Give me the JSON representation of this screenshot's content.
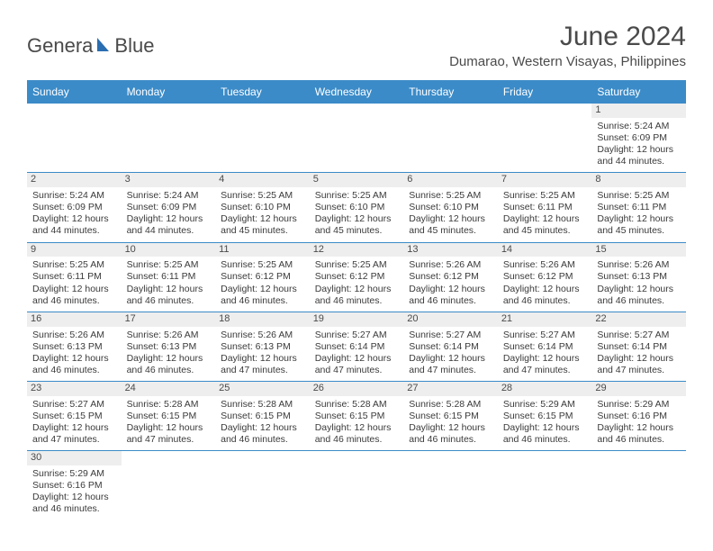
{
  "logo": {
    "text1": "Genera",
    "text2": "Blue",
    "shape_color": "#2a6db0"
  },
  "title": {
    "month": "June 2024",
    "location": "Dumarao, Western Visayas, Philippines"
  },
  "header_bg": "#3b8bc8",
  "days": [
    "Sunday",
    "Monday",
    "Tuesday",
    "Wednesday",
    "Thursday",
    "Friday",
    "Saturday"
  ],
  "cells": [
    {
      "n": "",
      "e": true
    },
    {
      "n": "",
      "e": true
    },
    {
      "n": "",
      "e": true
    },
    {
      "n": "",
      "e": true
    },
    {
      "n": "",
      "e": true
    },
    {
      "n": "",
      "e": true
    },
    {
      "n": "1",
      "sr": "5:24 AM",
      "ss": "6:09 PM",
      "dl": "12 hours and 44 minutes."
    },
    {
      "n": "2",
      "sr": "5:24 AM",
      "ss": "6:09 PM",
      "dl": "12 hours and 44 minutes."
    },
    {
      "n": "3",
      "sr": "5:24 AM",
      "ss": "6:09 PM",
      "dl": "12 hours and 44 minutes."
    },
    {
      "n": "4",
      "sr": "5:25 AM",
      "ss": "6:10 PM",
      "dl": "12 hours and 45 minutes."
    },
    {
      "n": "5",
      "sr": "5:25 AM",
      "ss": "6:10 PM",
      "dl": "12 hours and 45 minutes."
    },
    {
      "n": "6",
      "sr": "5:25 AM",
      "ss": "6:10 PM",
      "dl": "12 hours and 45 minutes."
    },
    {
      "n": "7",
      "sr": "5:25 AM",
      "ss": "6:11 PM",
      "dl": "12 hours and 45 minutes."
    },
    {
      "n": "8",
      "sr": "5:25 AM",
      "ss": "6:11 PM",
      "dl": "12 hours and 45 minutes."
    },
    {
      "n": "9",
      "sr": "5:25 AM",
      "ss": "6:11 PM",
      "dl": "12 hours and 46 minutes."
    },
    {
      "n": "10",
      "sr": "5:25 AM",
      "ss": "6:11 PM",
      "dl": "12 hours and 46 minutes."
    },
    {
      "n": "11",
      "sr": "5:25 AM",
      "ss": "6:12 PM",
      "dl": "12 hours and 46 minutes."
    },
    {
      "n": "12",
      "sr": "5:25 AM",
      "ss": "6:12 PM",
      "dl": "12 hours and 46 minutes."
    },
    {
      "n": "13",
      "sr": "5:26 AM",
      "ss": "6:12 PM",
      "dl": "12 hours and 46 minutes."
    },
    {
      "n": "14",
      "sr": "5:26 AM",
      "ss": "6:12 PM",
      "dl": "12 hours and 46 minutes."
    },
    {
      "n": "15",
      "sr": "5:26 AM",
      "ss": "6:13 PM",
      "dl": "12 hours and 46 minutes."
    },
    {
      "n": "16",
      "sr": "5:26 AM",
      "ss": "6:13 PM",
      "dl": "12 hours and 46 minutes."
    },
    {
      "n": "17",
      "sr": "5:26 AM",
      "ss": "6:13 PM",
      "dl": "12 hours and 46 minutes."
    },
    {
      "n": "18",
      "sr": "5:26 AM",
      "ss": "6:13 PM",
      "dl": "12 hours and 47 minutes."
    },
    {
      "n": "19",
      "sr": "5:27 AM",
      "ss": "6:14 PM",
      "dl": "12 hours and 47 minutes."
    },
    {
      "n": "20",
      "sr": "5:27 AM",
      "ss": "6:14 PM",
      "dl": "12 hours and 47 minutes."
    },
    {
      "n": "21",
      "sr": "5:27 AM",
      "ss": "6:14 PM",
      "dl": "12 hours and 47 minutes."
    },
    {
      "n": "22",
      "sr": "5:27 AM",
      "ss": "6:14 PM",
      "dl": "12 hours and 47 minutes."
    },
    {
      "n": "23",
      "sr": "5:27 AM",
      "ss": "6:15 PM",
      "dl": "12 hours and 47 minutes."
    },
    {
      "n": "24",
      "sr": "5:28 AM",
      "ss": "6:15 PM",
      "dl": "12 hours and 47 minutes."
    },
    {
      "n": "25",
      "sr": "5:28 AM",
      "ss": "6:15 PM",
      "dl": "12 hours and 46 minutes."
    },
    {
      "n": "26",
      "sr": "5:28 AM",
      "ss": "6:15 PM",
      "dl": "12 hours and 46 minutes."
    },
    {
      "n": "27",
      "sr": "5:28 AM",
      "ss": "6:15 PM",
      "dl": "12 hours and 46 minutes."
    },
    {
      "n": "28",
      "sr": "5:29 AM",
      "ss": "6:15 PM",
      "dl": "12 hours and 46 minutes."
    },
    {
      "n": "29",
      "sr": "5:29 AM",
      "ss": "6:16 PM",
      "dl": "12 hours and 46 minutes."
    },
    {
      "n": "30",
      "sr": "5:29 AM",
      "ss": "6:16 PM",
      "dl": "12 hours and 46 minutes."
    },
    {
      "n": "",
      "e": true
    },
    {
      "n": "",
      "e": true
    },
    {
      "n": "",
      "e": true
    },
    {
      "n": "",
      "e": true
    },
    {
      "n": "",
      "e": true
    },
    {
      "n": "",
      "e": true
    }
  ],
  "labels": {
    "sunrise": "Sunrise: ",
    "sunset": "Sunset: ",
    "daylight": "Daylight: "
  }
}
